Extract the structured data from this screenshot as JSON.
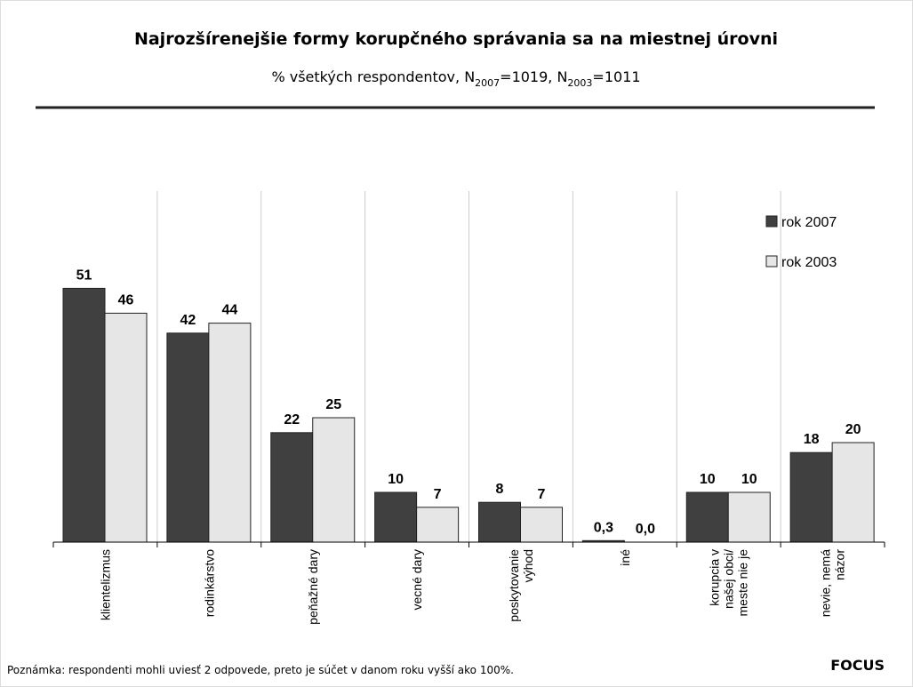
{
  "chart_data": {
    "type": "bar",
    "title": "Najrozšírenejšie formy korupčného správania sa na miestnej úrovni",
    "subtitle": [
      "% všetkých respondentov, N",
      "2007",
      "=1019, N",
      "2003",
      "=1011"
    ],
    "categories": [
      "klientelizmus",
      "rodinkárstvo",
      "peňažné dary",
      "vecné dary",
      "poskytovanie\nvýhod",
      "iné",
      "korupcia v\nnašej obci/\nmeste nie je",
      "nevie, nemá\nnázor"
    ],
    "series": [
      {
        "name": "rok 2007",
        "color": "#404040",
        "values": [
          51,
          42,
          22,
          10,
          8,
          0.3,
          10,
          18
        ],
        "value_labels": [
          "51",
          "42",
          "22",
          "10",
          "8",
          "0,3",
          "10",
          "18"
        ]
      },
      {
        "name": "rok 2003",
        "color": "#e6e6e6",
        "values": [
          46,
          44,
          25,
          7,
          7,
          0,
          10,
          20
        ],
        "value_labels": [
          "46",
          "44",
          "25",
          "7",
          "7",
          "0,0",
          "10",
          "20"
        ]
      }
    ],
    "ylim": [
      0,
      70
    ],
    "legend": "upper right",
    "note": "Poznámka: respondenti mohli uviesť 2 odpovede, preto je súčet v danom roku vyšší ako 100%.",
    "source": "FOCUS"
  }
}
